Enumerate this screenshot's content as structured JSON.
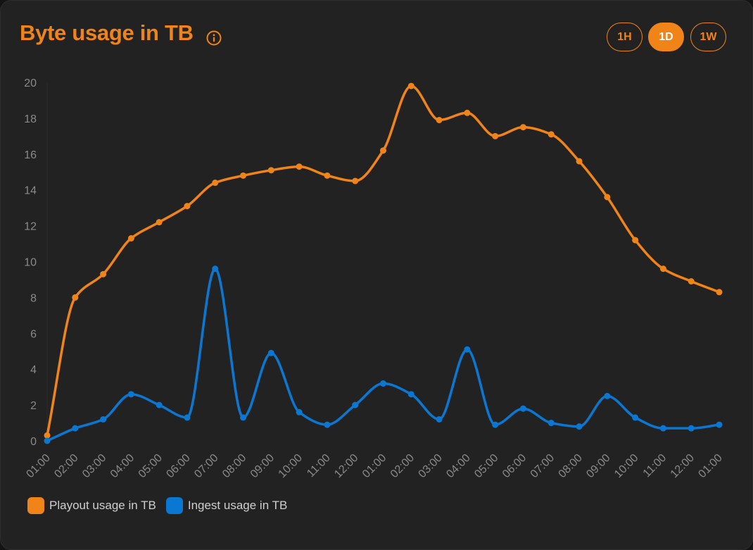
{
  "header": {
    "title": "Byte usage in TB",
    "ranges": [
      {
        "label": "1H",
        "active": false
      },
      {
        "label": "1D",
        "active": true
      },
      {
        "label": "1W",
        "active": false
      }
    ]
  },
  "colors": {
    "accent": "#f08418",
    "playout": "#f08418",
    "ingest": "#0a78d2",
    "tick_text": "#8a8a8a"
  },
  "chart_data": {
    "type": "line",
    "title": "",
    "xlabel": "",
    "ylabel": "",
    "ylim": [
      0,
      20
    ],
    "yticks": [
      0,
      2,
      4,
      6,
      8,
      10,
      12,
      14,
      16,
      18,
      20
    ],
    "grid": false,
    "legend_position": "bottom-left",
    "categories": [
      "01:00",
      "02:00",
      "03:00",
      "04:00",
      "05:00",
      "06:00",
      "07:00",
      "08:00",
      "09:00",
      "10:00",
      "11:00",
      "12:00",
      "01:00",
      "02:00",
      "03:00",
      "04:00",
      "05:00",
      "06:00",
      "07:00",
      "08:00",
      "09:00",
      "10:00",
      "11:00",
      "12:00",
      "01:00"
    ],
    "series": [
      {
        "name": "Playout usage in TB",
        "color": "#f08418",
        "values": [
          0.3,
          8.0,
          9.3,
          11.3,
          12.2,
          13.1,
          14.4,
          14.8,
          15.1,
          15.3,
          14.8,
          14.5,
          16.2,
          19.8,
          17.9,
          18.3,
          17.0,
          17.5,
          17.1,
          15.6,
          13.6,
          11.2,
          9.6,
          8.9,
          8.3
        ]
      },
      {
        "name": "Ingest usage in TB",
        "color": "#0a78d2",
        "values": [
          0.0,
          0.7,
          1.2,
          2.6,
          2.0,
          1.3,
          9.6,
          1.3,
          4.9,
          1.6,
          0.9,
          2.0,
          3.2,
          2.6,
          1.2,
          5.1,
          0.9,
          1.8,
          1.0,
          0.8,
          2.5,
          1.3,
          0.7,
          0.7,
          0.9
        ]
      }
    ]
  }
}
